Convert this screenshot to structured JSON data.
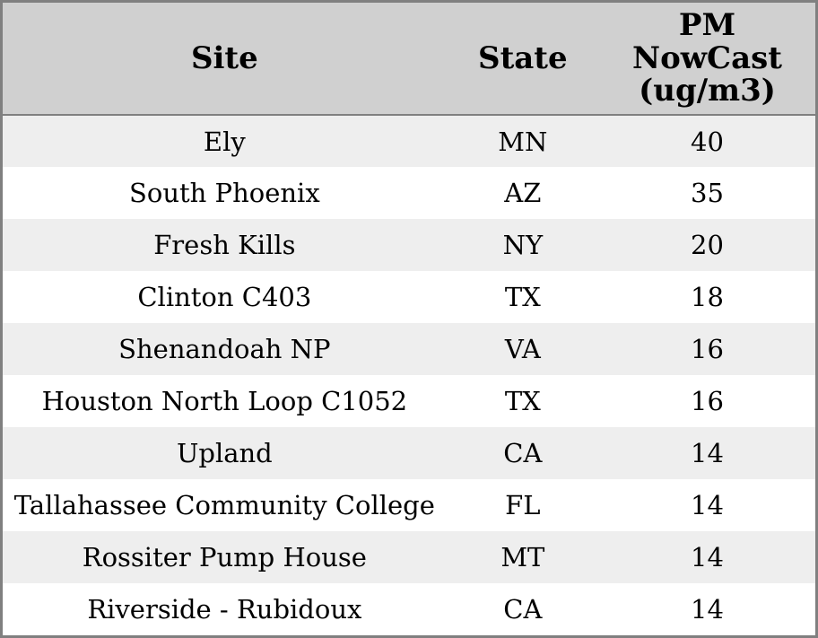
{
  "chart_data": {
    "type": "table",
    "columns": [
      "Site",
      "State",
      "PM NowCast (ug/m3)"
    ],
    "rows": [
      [
        "Ely",
        "MN",
        40
      ],
      [
        "South Phoenix",
        "AZ",
        35
      ],
      [
        "Fresh Kills",
        "NY",
        20
      ],
      [
        "Clinton C403",
        "TX",
        18
      ],
      [
        "Shenandoah NP",
        "VA",
        16
      ],
      [
        "Houston North Loop C1052",
        "TX",
        16
      ],
      [
        "Upland",
        "CA",
        14
      ],
      [
        "Tallahassee Community College",
        "FL",
        14
      ],
      [
        "Rossiter Pump House",
        "MT",
        14
      ],
      [
        "Riverside - Rubidoux",
        "CA",
        14
      ]
    ]
  },
  "header": {
    "site_label": "Site",
    "state_label": "State",
    "pm_label": "PM\nNowCast\n(ug/m3)"
  },
  "colors": {
    "outer_border": "#808080",
    "header_bg": "#d0d0d0",
    "header_divider": "#808080",
    "row_stripe": "#eeeeee",
    "row_plain": "#ffffff",
    "text": "#000000"
  }
}
